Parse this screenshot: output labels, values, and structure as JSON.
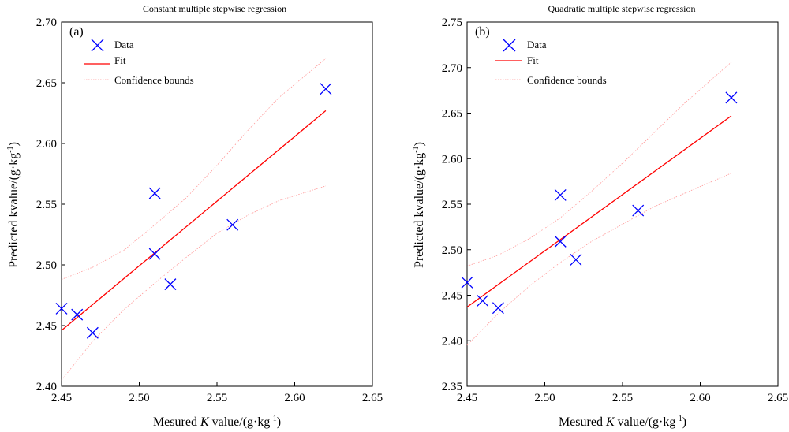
{
  "chart_data": [
    {
      "type": "scatter",
      "panel_label": "(a)",
      "title": "Constant multiple stepwise regression",
      "xlabel_parts": [
        "Mesured ",
        "K",
        " value/(g·kg",
        "-1",
        ")"
      ],
      "ylabel_parts": [
        "Predicted kvalue/(g·kg",
        "-1",
        ")"
      ],
      "xlim": [
        2.45,
        2.65
      ],
      "ylim": [
        2.4,
        2.7
      ],
      "xticks": [
        "2.45",
        "2.50",
        "2.55",
        "2.60",
        "2.65"
      ],
      "yticks": [
        "2.40",
        "2.45",
        "2.50",
        "2.55",
        "2.60",
        "2.65",
        "2.70"
      ],
      "legend": [
        "Data",
        "Fit",
        "Confidence bounds"
      ],
      "legend_position": "top-left",
      "colors": {
        "data": "#0000ff",
        "fit": "#ff0000",
        "bounds": "#ff9999"
      },
      "series": [
        {
          "name": "Data",
          "x": [
            2.45,
            2.46,
            2.47,
            2.51,
            2.51,
            2.52,
            2.56,
            2.62
          ],
          "y": [
            2.464,
            2.459,
            2.444,
            2.559,
            2.509,
            2.484,
            2.533,
            2.645
          ]
        }
      ],
      "fit": {
        "x": [
          2.45,
          2.62
        ],
        "y": [
          2.446,
          2.627
        ]
      },
      "bounds_upper": {
        "x": [
          2.45,
          2.47,
          2.49,
          2.51,
          2.53,
          2.55,
          2.57,
          2.59,
          2.62
        ],
        "y": [
          2.488,
          2.498,
          2.512,
          2.533,
          2.555,
          2.582,
          2.611,
          2.638,
          2.67
        ]
      },
      "bounds_lower": {
        "x": [
          2.45,
          2.47,
          2.49,
          2.51,
          2.53,
          2.55,
          2.57,
          2.59,
          2.62
        ],
        "y": [
          2.405,
          2.437,
          2.463,
          2.485,
          2.506,
          2.526,
          2.541,
          2.553,
          2.565
        ]
      }
    },
    {
      "type": "scatter",
      "panel_label": "(b)",
      "title": "Quadratic multiple stepwise regression",
      "xlabel_parts": [
        "Mesured ",
        "K",
        " value/(g·kg",
        "-1",
        ")"
      ],
      "ylabel_parts": [
        "Predicted kvalue/(g·kg",
        "-1",
        ")"
      ],
      "xlim": [
        2.45,
        2.65
      ],
      "ylim": [
        2.35,
        2.75
      ],
      "xticks": [
        "2.45",
        "2.50",
        "2.55",
        "2.60",
        "2.65"
      ],
      "yticks": [
        "2.35",
        "2.40",
        "2.45",
        "2.50",
        "2.55",
        "2.60",
        "2.65",
        "2.70",
        "2.75"
      ],
      "legend": [
        "Data",
        "Fit",
        "Confidence bounds"
      ],
      "legend_position": "top-left",
      "colors": {
        "data": "#0000ff",
        "fit": "#ff0000",
        "bounds": "#ff9999"
      },
      "series": [
        {
          "name": "Data",
          "x": [
            2.45,
            2.46,
            2.47,
            2.51,
            2.51,
            2.52,
            2.56,
            2.62
          ],
          "y": [
            2.464,
            2.444,
            2.436,
            2.56,
            2.509,
            2.489,
            2.543,
            2.667
          ]
        }
      ],
      "fit": {
        "x": [
          2.45,
          2.62
        ],
        "y": [
          2.437,
          2.647
        ]
      },
      "bounds_upper": {
        "x": [
          2.45,
          2.47,
          2.49,
          2.51,
          2.53,
          2.55,
          2.57,
          2.59,
          2.62
        ],
        "y": [
          2.482,
          2.494,
          2.512,
          2.535,
          2.564,
          2.595,
          2.628,
          2.661,
          2.706
        ]
      },
      "bounds_lower": {
        "x": [
          2.45,
          2.47,
          2.49,
          2.51,
          2.53,
          2.55,
          2.57,
          2.59,
          2.62
        ],
        "y": [
          2.395,
          2.43,
          2.46,
          2.486,
          2.509,
          2.528,
          2.547,
          2.562,
          2.584
        ]
      }
    }
  ]
}
